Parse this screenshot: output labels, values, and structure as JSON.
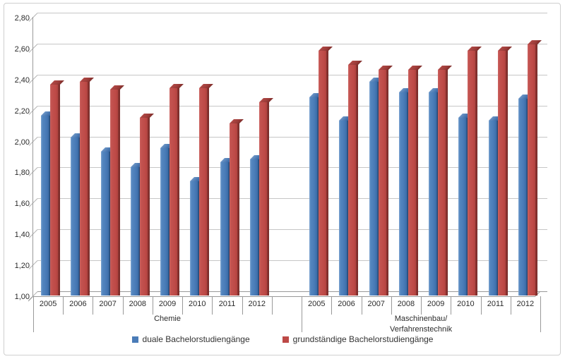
{
  "chart_data": {
    "type": "bar",
    "style": "3d-clustered-column",
    "title": "",
    "grid": true,
    "y_axis": {
      "min": 1.0,
      "max": 2.8,
      "step": 0.2,
      "tick_labels": [
        "2,80",
        "2,60",
        "2,40",
        "2,20",
        "2,00",
        "1,80",
        "1,60",
        "1,40",
        "1,20",
        "1,00"
      ]
    },
    "legend": {
      "position": "bottom",
      "entries": [
        {
          "label": "duale Bachelorstudiengänge",
          "color": "#4A7CB8"
        },
        {
          "label": "grundständige Bachelorstudiengänge",
          "color": "#BD4946"
        }
      ]
    },
    "groups": [
      {
        "label": "Chemie",
        "label_lines": [
          "Chemie"
        ],
        "years": [
          "2005",
          "2006",
          "2007",
          "2008",
          "2009",
          "2010",
          "2011",
          "2012"
        ],
        "series": [
          {
            "name": "duale Bachelorstudiengänge",
            "color": "#4A7CB8",
            "values": [
              2.16,
              2.02,
              1.93,
              1.83,
              1.95,
              1.74,
              1.86,
              1.88
            ]
          },
          {
            "name": "grundständige Bachelorstudiengänge",
            "color": "#BD4946",
            "values": [
              2.36,
              2.38,
              2.33,
              2.15,
              2.34,
              2.34,
              2.11,
              2.25
            ]
          }
        ]
      },
      {
        "label": "Maschinenbau/Verfahrenstechnik",
        "label_lines": [
          "Maschinenbau/",
          "Verfahrenstechnik"
        ],
        "years": [
          "2005",
          "2006",
          "2007",
          "2008",
          "2009",
          "2010",
          "2011",
          "2012"
        ],
        "series": [
          {
            "name": "duale Bachelorstudiengänge",
            "color": "#4A7CB8",
            "values": [
              2.28,
              2.13,
              2.38,
              2.31,
              2.31,
              2.15,
              2.13,
              2.27
            ]
          },
          {
            "name": "grundständige Bachelorstudiengänge",
            "color": "#BD4946",
            "values": [
              2.58,
              2.49,
              2.46,
              2.46,
              2.46,
              2.58,
              2.58,
              2.62
            ]
          }
        ]
      }
    ],
    "colors": {
      "gridline": "#C6C6C6",
      "axis": "#999999",
      "background": "#FFFFFF",
      "border": "#CFCFCF"
    }
  }
}
